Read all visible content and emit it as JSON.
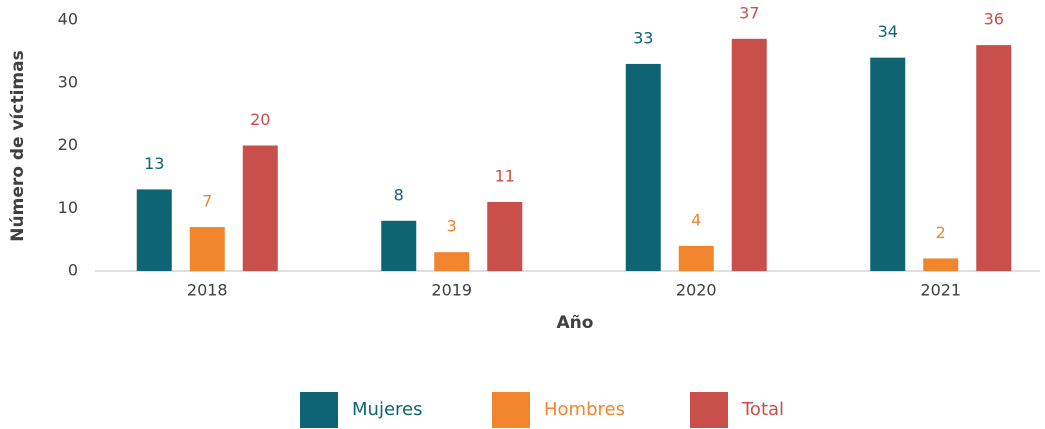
{
  "chart_data": {
    "type": "bar",
    "categories": [
      "2018",
      "2019",
      "2020",
      "2021"
    ],
    "series": [
      {
        "name": "Mujeres",
        "color": "#0e6472",
        "values": [
          13,
          8,
          33,
          34
        ]
      },
      {
        "name": "Hombres",
        "color": "#f0852d",
        "values": [
          7,
          3,
          4,
          2
        ]
      },
      {
        "name": "Total",
        "color": "#c9504a",
        "values": [
          20,
          11,
          37,
          36
        ]
      }
    ],
    "ylim": [
      0,
      40
    ],
    "yticks": [
      0,
      10,
      20,
      30,
      40
    ],
    "x_label": "Año",
    "y_label": "Número de víctimas",
    "grid": false,
    "legend": "bottom"
  }
}
